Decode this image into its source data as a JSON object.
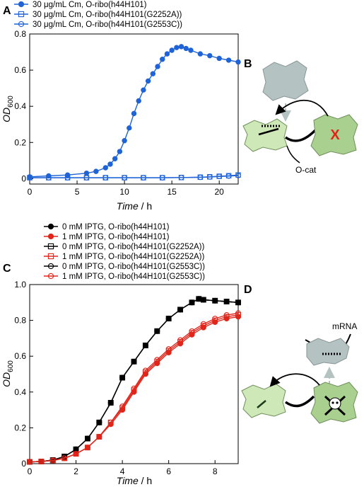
{
  "panel_labels": {
    "A": "A",
    "B": "B",
    "C": "C",
    "D": "D"
  },
  "diagram_b": {
    "ocat_label": "O-cat",
    "x_mark": "X"
  },
  "diagram_d": {
    "mrna_label": "mRNA"
  },
  "colors": {
    "blue": "#1f63d6",
    "red": "#e0261b",
    "black": "#000000",
    "cell_green": "#cfe8b8",
    "cell_green_dark": "#a9d08f",
    "ribo_gray": "#b5c2c2"
  },
  "chart_data": [
    {
      "id": "A",
      "type": "line",
      "xlabel_italic": "Time",
      "xlabel_unit": " / h",
      "ylabel_main": "OD",
      "ylabel_sub": "600",
      "xlim": [
        0,
        22
      ],
      "ylim": [
        -0.03,
        0.8
      ],
      "xticks": [
        0,
        5,
        10,
        15,
        20
      ],
      "yticks": [
        0,
        0.2,
        0.4,
        0.6,
        0.8
      ],
      "xtick_labels": [
        "0",
        "5",
        "10",
        "15",
        "20"
      ],
      "ytick_labels": [
        "0",
        "0.2",
        "0.4",
        "0.6",
        "0.8"
      ],
      "legend_position": "top-left",
      "series": [
        {
          "name": "30 μg/mL Cm, O-ribo(h44H101)",
          "color": "#1f63d6",
          "marker": "filled-circle",
          "x": [
            0,
            2,
            4,
            6,
            7,
            8,
            8.5,
            9,
            9.5,
            10,
            10.5,
            11,
            11.5,
            12,
            12.5,
            13,
            13.5,
            14,
            14.5,
            15,
            15.5,
            16,
            16.5,
            17,
            18,
            19,
            20,
            21,
            22
          ],
          "y": [
            0.01,
            0.015,
            0.02,
            0.03,
            0.04,
            0.06,
            0.08,
            0.11,
            0.15,
            0.21,
            0.28,
            0.36,
            0.43,
            0.49,
            0.54,
            0.58,
            0.62,
            0.66,
            0.69,
            0.71,
            0.725,
            0.73,
            0.72,
            0.71,
            0.69,
            0.68,
            0.665,
            0.655,
            0.645
          ]
        },
        {
          "name": "30 μg/mL Cm, O-ribo(h44H101(G2252A))",
          "color": "#1f63d6",
          "marker": "open-square",
          "x": [
            0,
            2,
            4,
            6,
            8,
            10,
            12,
            14,
            16,
            18,
            19,
            20,
            21,
            22
          ],
          "y": [
            0.005,
            0.005,
            0.005,
            0.005,
            0.005,
            0.005,
            0.005,
            0.005,
            0.006,
            0.008,
            0.01,
            0.013,
            0.016,
            0.02
          ]
        },
        {
          "name": "30 μg/mL Cm, O-ribo(h44H101(G2553C))",
          "color": "#1f63d6",
          "marker": "open-circle",
          "x": [
            0,
            2,
            4,
            6,
            8,
            10,
            12,
            14,
            16,
            18,
            19,
            20,
            21,
            22
          ],
          "y": [
            0.005,
            0.005,
            0.005,
            0.005,
            0.005,
            0.005,
            0.005,
            0.005,
            0.006,
            0.007,
            0.009,
            0.012,
            0.014,
            0.017
          ]
        }
      ]
    },
    {
      "id": "C",
      "type": "line",
      "xlabel_italic": "Time",
      "xlabel_unit": " / h",
      "ylabel_main": "OD",
      "ylabel_sub": "600",
      "xlim": [
        0,
        9
      ],
      "ylim": [
        0,
        1.0
      ],
      "xticks": [
        0,
        2,
        4,
        6,
        8
      ],
      "yticks": [
        0,
        0.2,
        0.4,
        0.6,
        0.8,
        1.0
      ],
      "xtick_labels": [
        "0",
        "2",
        "4",
        "6",
        "8"
      ],
      "ytick_labels": [
        "0",
        "0.2",
        "0.4",
        "0.6",
        "0.8",
        "1.0"
      ],
      "legend_position": "top-left",
      "series": [
        {
          "name": "0 mM IPTG, O-ribo(h44H101)",
          "color": "#000000",
          "marker": "filled-circle",
          "x": [
            0,
            0.5,
            1,
            1.5,
            2,
            2.5,
            3,
            3.5,
            4,
            4.5,
            5,
            5.5,
            6,
            6.5,
            7,
            7.3,
            7.5,
            8,
            8.5,
            9
          ],
          "y": [
            0.01,
            0.012,
            0.02,
            0.04,
            0.08,
            0.14,
            0.23,
            0.34,
            0.48,
            0.57,
            0.66,
            0.74,
            0.81,
            0.86,
            0.9,
            0.92,
            0.915,
            0.91,
            0.905,
            0.9
          ]
        },
        {
          "name": "1 mM IPTG, O-ribo(h44H101)",
          "color": "#e0261b",
          "marker": "filled-circle",
          "x": [
            0,
            0.5,
            1,
            1.5,
            2,
            2.5,
            3,
            3.5,
            4,
            4.5,
            5,
            5.5,
            6,
            6.5,
            7,
            7.5,
            8,
            8.5,
            9
          ],
          "y": [
            0.01,
            0.012,
            0.018,
            0.03,
            0.055,
            0.09,
            0.15,
            0.22,
            0.3,
            0.4,
            0.5,
            0.56,
            0.62,
            0.67,
            0.72,
            0.76,
            0.79,
            0.81,
            0.82
          ]
        },
        {
          "name": "0 mM IPTG, O-ribo(h44H101(G2252A))",
          "color": "#000000",
          "marker": "open-square",
          "x": [
            0,
            0.5,
            1,
            1.5,
            2,
            2.5,
            3,
            3.5,
            4,
            4.5,
            5,
            5.5,
            6,
            6.5,
            7,
            7.3,
            7.5,
            8,
            8.5,
            9
          ],
          "y": [
            0.01,
            0.012,
            0.02,
            0.04,
            0.08,
            0.14,
            0.23,
            0.34,
            0.48,
            0.57,
            0.66,
            0.74,
            0.81,
            0.86,
            0.9,
            0.92,
            0.915,
            0.91,
            0.905,
            0.9
          ]
        },
        {
          "name": "1 mM IPTG, O-ribo(h44H101(G2252A))",
          "color": "#e0261b",
          "marker": "open-square",
          "x": [
            0,
            0.5,
            1,
            1.5,
            2,
            2.5,
            3,
            3.5,
            4,
            4.5,
            5,
            5.5,
            6,
            6.5,
            7,
            7.5,
            8,
            8.5,
            9
          ],
          "y": [
            0.01,
            0.012,
            0.018,
            0.03,
            0.055,
            0.09,
            0.15,
            0.23,
            0.31,
            0.41,
            0.51,
            0.57,
            0.63,
            0.68,
            0.73,
            0.77,
            0.8,
            0.82,
            0.83
          ]
        },
        {
          "name": "0 mM IPTG, O-ribo(h44H101(G2553C))",
          "color": "#000000",
          "marker": "open-circle",
          "x": [
            0,
            0.5,
            1,
            1.5,
            2,
            2.5,
            3,
            3.5,
            4,
            4.5,
            5,
            5.5,
            6,
            6.5,
            7,
            7.3,
            7.5,
            8,
            8.5,
            9
          ],
          "y": [
            0.01,
            0.012,
            0.02,
            0.04,
            0.08,
            0.14,
            0.23,
            0.34,
            0.48,
            0.57,
            0.66,
            0.74,
            0.81,
            0.86,
            0.9,
            0.92,
            0.915,
            0.91,
            0.905,
            0.9
          ]
        },
        {
          "name": "1 mM IPTG, O-ribo(h44H101(G2553C))",
          "color": "#e0261b",
          "marker": "open-circle",
          "x": [
            0,
            0.5,
            1,
            1.5,
            2,
            2.5,
            3,
            3.5,
            4,
            4.5,
            5,
            5.5,
            6,
            6.5,
            7,
            7.5,
            8,
            8.5,
            9
          ],
          "y": [
            0.01,
            0.012,
            0.018,
            0.03,
            0.055,
            0.09,
            0.15,
            0.23,
            0.32,
            0.42,
            0.52,
            0.58,
            0.64,
            0.69,
            0.74,
            0.78,
            0.81,
            0.83,
            0.84
          ]
        }
      ]
    }
  ]
}
